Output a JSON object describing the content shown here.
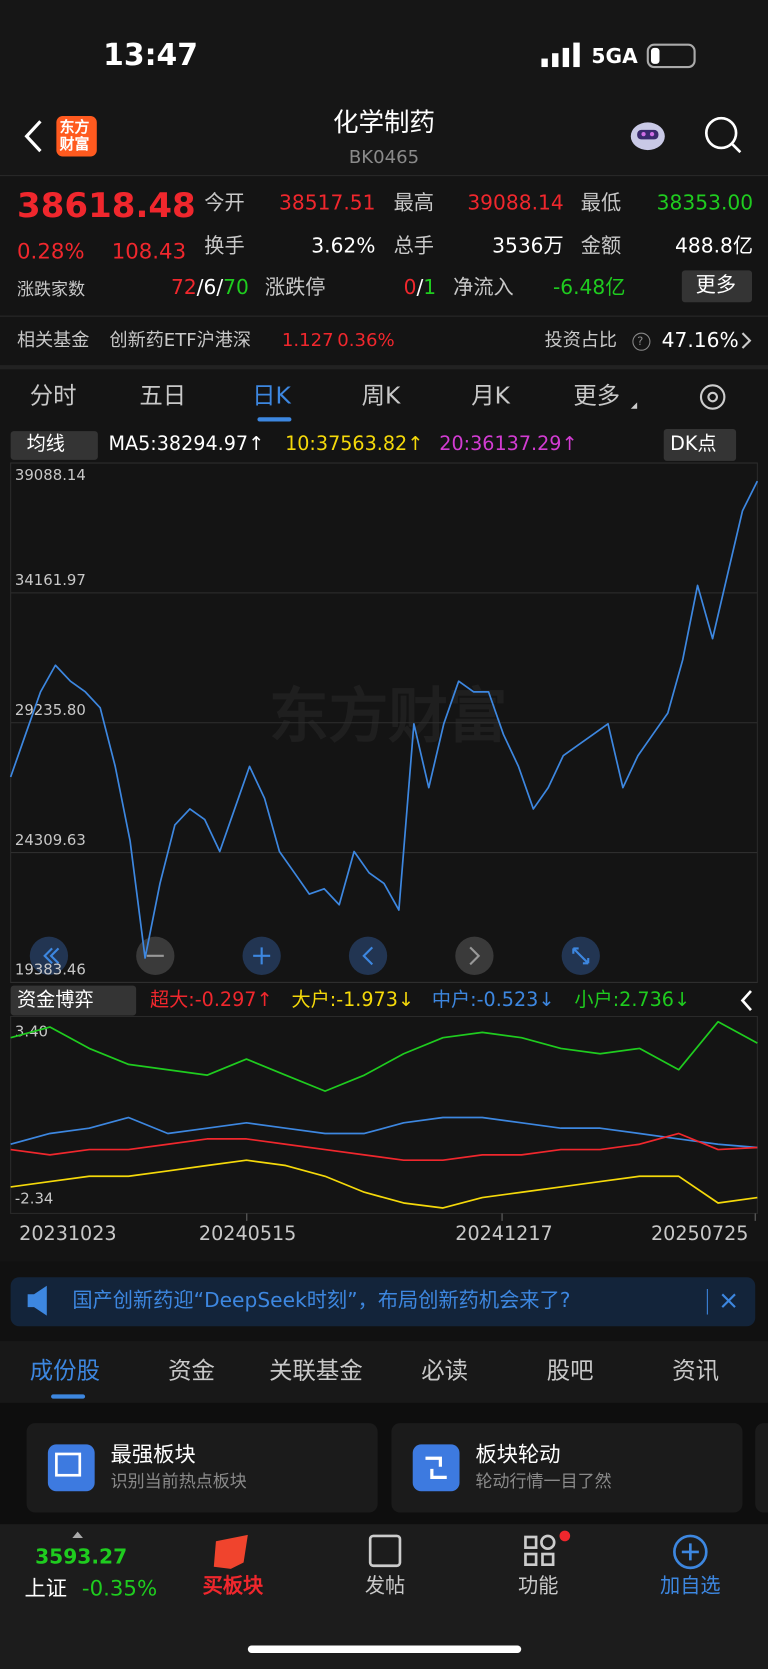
{
  "status_bar": {
    "time": "13:47",
    "network": "5GA"
  },
  "header": {
    "logo": [
      "东方",
      "财富"
    ],
    "title": "化学制药",
    "code": "BK0465"
  },
  "quote": {
    "price": "38618.48",
    "change_pct": "0.28%",
    "change": "108.43",
    "open_label": "今开",
    "open": "38517.51",
    "high_label": "最高",
    "high": "39088.14",
    "low_label": "最低",
    "low": "38353.00",
    "turnover_label": "换手",
    "turnover": "3.62%",
    "volume_label": "总手",
    "volume": "3536万",
    "amount_label": "金额",
    "amount": "488.8亿"
  },
  "breadth": {
    "label": "涨跌家数",
    "rise": "72",
    "flat": "/6/",
    "fall": "70"
  },
  "limit": {
    "label": "涨跌停",
    "up": "0",
    "sep": "/",
    "down": "1"
  },
  "net_inflow": {
    "label": "净流入",
    "value": "-6.48亿"
  },
  "more_button": "更多",
  "fund": {
    "label": "相关基金",
    "name": "创新药ETF沪港深",
    "price": "1.127",
    "change": "0.36%",
    "ratio_label": "投资占比",
    "help": "?",
    "ratio": "47.16%"
  },
  "period_tabs": [
    "分时",
    "五日",
    "日K",
    "周K",
    "月K",
    "更多"
  ],
  "ma_bar": {
    "selector": "均线",
    "ma5": "MA5:38294.97↑",
    "ma10": "10:37563.82↑",
    "ma20": "20:36137.29↑",
    "dk": "DK点"
  },
  "watermark": "东方财富",
  "flow_selector": "资金博弈",
  "chart_data": [
    {
      "type": "line",
      "ylim": [
        19383.46,
        39088.14
      ],
      "yticks": [
        19383.46,
        24309.63,
        {
          "value": 29235.8,
          "label": "29235.80"
        },
        34161.97,
        39088.14
      ],
      "grid": true,
      "series": [
        {
          "color": "#3d87e0",
          "values": [
            27177,
            28791,
            30407,
            31416,
            30810,
            30407,
            29801,
            27580,
            24754,
            20312,
            23139,
            25360,
            25966,
            25562,
            24350,
            25966,
            27580,
            26369,
            24350,
            23543,
            22735,
            22937,
            22331,
            24350,
            23543,
            23139,
            22129,
            29196,
            26773,
            29196,
            30810,
            30407,
            30407,
            28791,
            27580,
            25966,
            26773,
            27984,
            28388,
            28791,
            29196,
            26773,
            27984,
            28791,
            29599,
            31618,
            34444,
            32425,
            34848,
            37271,
            38402
          ]
        }
      ]
    },
    {
      "type": "line",
      "ylim": [
        -2.34,
        3.4
      ],
      "yticks": [
        {
          "value": 3.4,
          "label": "3.40"
        },
        -2.34
      ],
      "grid": false,
      "x_labels": [
        "20231023",
        "20240515",
        "20241217",
        "20250725"
      ],
      "series": [
        {
          "name": "小户:2.736↓",
          "color": "#1fcc1f",
          "values": [
            2.86,
            3.18,
            2.54,
            2.06,
            1.9,
            1.74,
            2.22,
            1.74,
            1.26,
            1.74,
            2.38,
            2.86,
            3.02,
            2.86,
            2.54,
            2.38,
            2.54,
            1.9,
            3.34,
            2.7
          ]
        },
        {
          "name": "中户:-0.523↓",
          "color": "#3d87e0",
          "values": [
            -0.33,
            -0.01,
            0.15,
            0.47,
            -0.01,
            0.15,
            0.31,
            0.15,
            -0.01,
            -0.01,
            0.31,
            0.47,
            0.47,
            0.31,
            0.15,
            0.15,
            -0.01,
            -0.17,
            -0.33,
            -0.43
          ]
        },
        {
          "name": "超大:-0.297↑",
          "color": "#f0272d",
          "values": [
            -0.49,
            -0.65,
            -0.49,
            -0.49,
            -0.33,
            -0.17,
            -0.17,
            -0.33,
            -0.49,
            -0.65,
            -0.81,
            -0.81,
            -0.65,
            -0.65,
            -0.49,
            -0.49,
            -0.33,
            -0.01,
            -0.49,
            -0.43
          ]
        },
        {
          "name": "大户:-1.973↓",
          "color": "#f5d90a",
          "values": [
            -1.61,
            -1.45,
            -1.29,
            -1.29,
            -1.13,
            -0.97,
            -0.81,
            -0.97,
            -1.29,
            -1.77,
            -2.09,
            -2.24,
            -1.93,
            -1.77,
            -1.61,
            -1.45,
            -1.29,
            -1.29,
            -2.09,
            -1.93
          ]
        }
      ]
    }
  ],
  "banner": "国产创新药迎“DeepSeek时刻”，布局创新药机会来了?",
  "section_tabs": [
    "成份股",
    "资金",
    "关联基金",
    "必读",
    "股吧",
    "资讯"
  ],
  "cards": [
    {
      "title": "最强板块",
      "subtitle": "识别当前热点板块"
    },
    {
      "title": "板块轮动",
      "subtitle": "轮动行情一目了然"
    }
  ],
  "bottom_bar": {
    "index_value": "3593.27",
    "index_name": "上证",
    "index_change": "-0.35%",
    "items": [
      "买板块",
      "发帖",
      "功能",
      "加自选"
    ]
  }
}
